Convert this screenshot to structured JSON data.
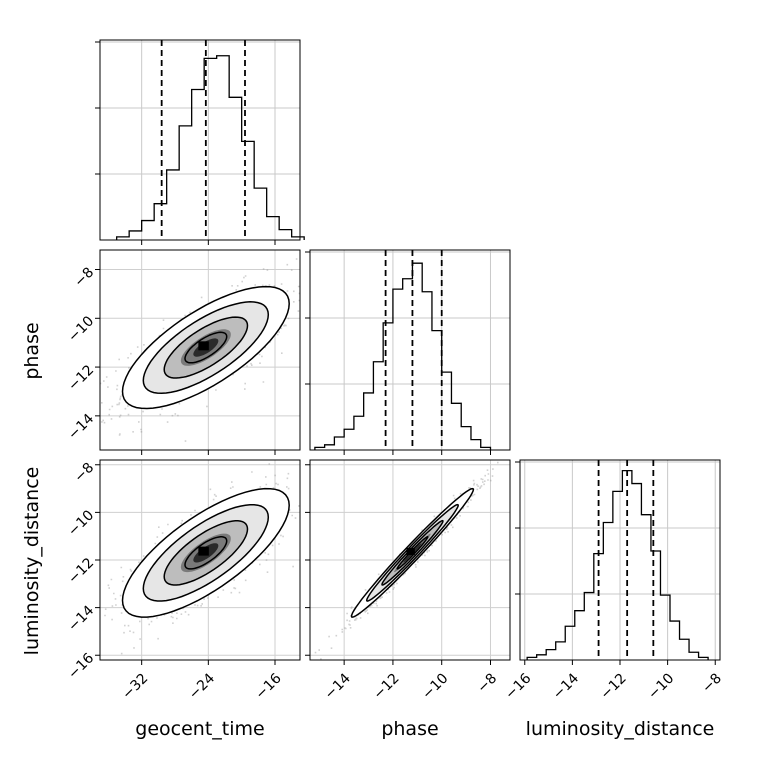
{
  "chart_data": {
    "type": "corner",
    "parameters": [
      "geocent_time",
      "phase",
      "luminosity_distance"
    ],
    "axis_labels": {
      "x": [
        "geocent_time",
        "phase",
        "luminosity_distance"
      ],
      "y": [
        "phase",
        "luminosity_distance"
      ]
    },
    "ranges": [
      [
        -37,
        -13
      ],
      [
        -15.4,
        -7.2
      ],
      [
        -16.2,
        -7.8
      ]
    ],
    "ticks": [
      [
        "−32",
        "−24",
        "−16"
      ],
      [
        "−14",
        "−12",
        "−10",
        "−8"
      ],
      [
        "−16",
        "−14",
        "−12",
        "−10",
        "−8"
      ]
    ],
    "tick_values": [
      [
        -32,
        -24,
        -16
      ],
      [
        -14,
        -12,
        -10,
        -8
      ],
      [
        -16,
        -14,
        -12,
        -10,
        -8
      ]
    ],
    "grid": true,
    "quantile_lines": [
      [
        -29.6,
        -24.3,
        -19.6
      ],
      [
        -12.3,
        -11.2,
        -10.0
      ],
      [
        -12.9,
        -11.7,
        -10.6
      ]
    ],
    "histograms": [
      {
        "parameter": "geocent_time",
        "edges": [
          -35,
          -33.5,
          -32,
          -30.5,
          -29,
          -27.5,
          -26,
          -24.5,
          -23,
          -21.5,
          -20,
          -18.5,
          -17,
          -15.5,
          -14,
          -12.5
        ],
        "counts": [
          0.012,
          0.035,
          0.075,
          0.14,
          0.27,
          0.44,
          0.58,
          0.7,
          0.71,
          0.55,
          0.38,
          0.2,
          0.09,
          0.04,
          0.012
        ]
      },
      {
        "parameter": "phase",
        "edges": [
          -15.2,
          -14.8,
          -14.4,
          -14.0,
          -13.6,
          -13.2,
          -12.8,
          -12.4,
          -12.0,
          -11.6,
          -11.2,
          -10.8,
          -10.4,
          -10.0,
          -9.6,
          -9.2,
          -8.8,
          -8.4,
          -8.0
        ],
        "counts": [
          0.01,
          0.02,
          0.05,
          0.08,
          0.13,
          0.22,
          0.34,
          0.49,
          0.62,
          0.66,
          0.72,
          0.61,
          0.46,
          0.3,
          0.18,
          0.09,
          0.04,
          0.01
        ]
      },
      {
        "parameter": "luminosity_distance",
        "edges": [
          -15.9,
          -15.5,
          -15.1,
          -14.7,
          -14.3,
          -13.9,
          -13.5,
          -13.1,
          -12.7,
          -12.3,
          -11.9,
          -11.5,
          -11.1,
          -10.7,
          -10.3,
          -9.9,
          -9.5,
          -9.1,
          -8.7,
          -8.3
        ],
        "counts": [
          0.01,
          0.02,
          0.04,
          0.07,
          0.13,
          0.19,
          0.26,
          0.41,
          0.53,
          0.65,
          0.73,
          0.68,
          0.56,
          0.42,
          0.25,
          0.15,
          0.08,
          0.03,
          0.01
        ]
      }
    ],
    "pairs": [
      {
        "x": "geocent_time",
        "y": "phase",
        "center": [
          -24.3,
          -11.2
        ],
        "sd": [
          5.0,
          1.25
        ],
        "corr": 0.72
      },
      {
        "x": "geocent_time",
        "y": "luminosity_distance",
        "center": [
          -24.3,
          -11.7
        ],
        "sd": [
          5.0,
          1.35
        ],
        "corr": 0.74
      },
      {
        "x": "phase",
        "y": "luminosity_distance",
        "center": [
          -11.2,
          -11.7
        ],
        "sd": [
          1.25,
          1.35
        ],
        "corr": 0.985
      }
    ],
    "contour_levels_sigma": [
      0.5,
      1.0,
      1.5,
      2.0
    ]
  }
}
